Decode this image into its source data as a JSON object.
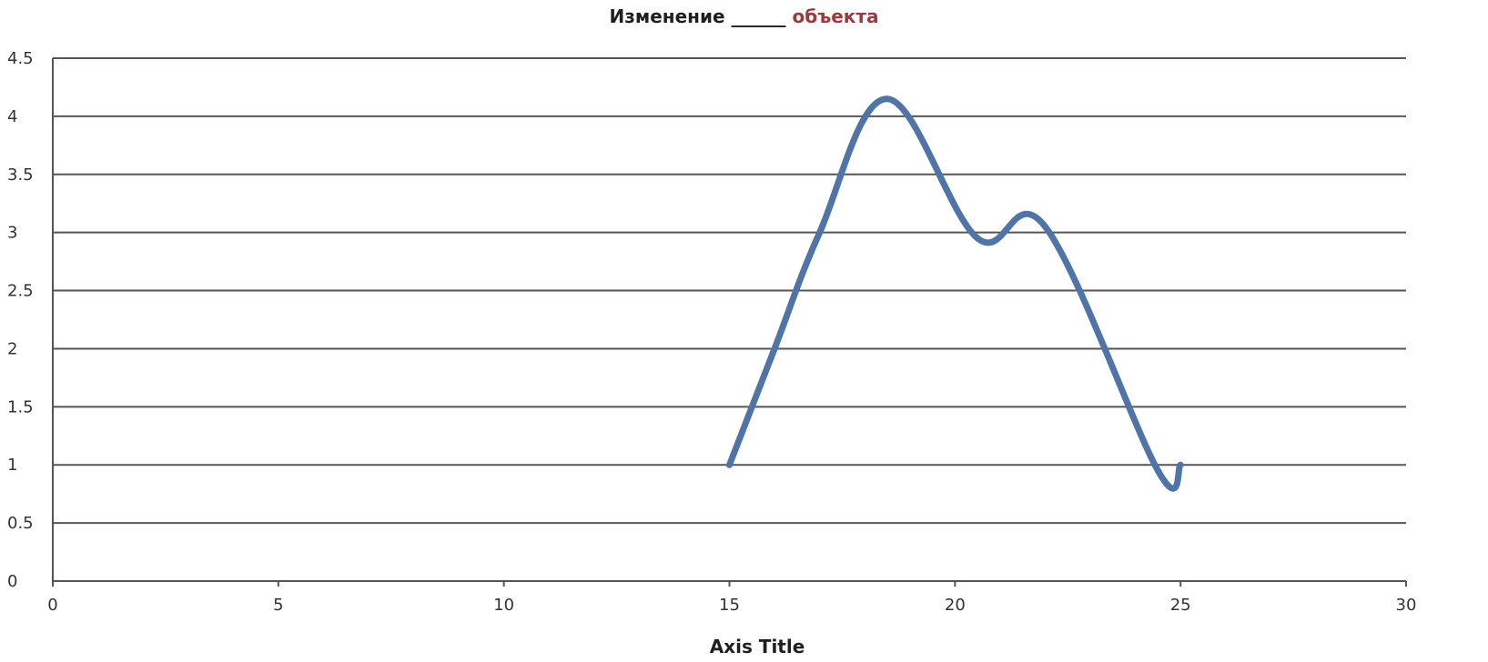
{
  "chart_data": {
    "type": "line",
    "title": {
      "main": "Изменение ______",
      "accent": "объекта"
    },
    "xlabel": "Axis Title",
    "ylabel": "",
    "xlim": [
      0,
      30
    ],
    "ylim": [
      0,
      4.5
    ],
    "x_ticks": [
      "0",
      "5",
      "10",
      "15",
      "20",
      "25",
      "30"
    ],
    "x_tick_values": [
      0,
      5,
      10,
      15,
      20,
      25,
      30
    ],
    "y_ticks": [
      "0",
      "0.5",
      "1",
      "1.5",
      "2",
      "2.5",
      "3",
      "3.5",
      "4",
      "4.5"
    ],
    "y_tick_values": [
      0,
      0.5,
      1,
      1.5,
      2,
      2.5,
      3,
      3.5,
      4,
      4.5
    ],
    "grid": "horizontal",
    "smooth": true,
    "series": [
      {
        "x": [
          15,
          16,
          17,
          18.5,
          20.5,
          22,
          24.5,
          25
        ],
        "y": [
          1,
          2,
          3,
          4.15,
          2.95,
          3.05,
          0.95,
          1
        ],
        "color": "#4f74a8"
      }
    ]
  }
}
